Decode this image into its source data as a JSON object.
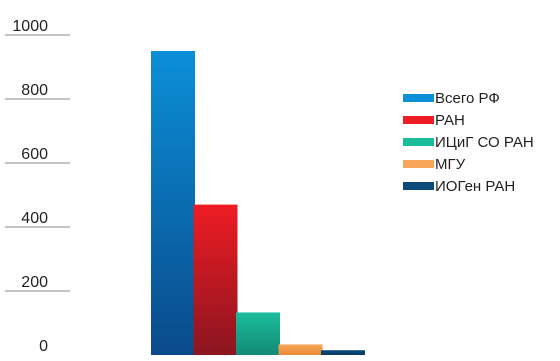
{
  "chart_data": {
    "type": "bar",
    "categories": [
      "Всего РФ",
      "РАН",
      "ИЦиГ СО РАН",
      "МГУ",
      "ИОГен РАН"
    ],
    "series": [
      {
        "name": "Всего РФ",
        "value": 950,
        "color_top": "#0b8fd8",
        "color_bottom": "#0a4a8a"
      },
      {
        "name": "РАН",
        "value": 470,
        "color_top": "#ee1c24",
        "color_bottom": "#8b1520"
      },
      {
        "name": "ИЦиГ СО РАН",
        "value": 133,
        "color_top": "#1bbc9b",
        "color_bottom": "#138a74"
      },
      {
        "name": "МГУ",
        "value": 33,
        "color_top": "#f8a65a",
        "color_bottom": "#e98a35"
      },
      {
        "name": "ИОГен РАН",
        "value": 15,
        "color_top": "#0d4a7a",
        "color_bottom": "#0a3a63"
      }
    ],
    "yticks": [
      "0",
      "200",
      "400",
      "600",
      "800",
      "1000"
    ],
    "ylim": [
      0,
      1000
    ],
    "grid": false,
    "legend_position": "right"
  }
}
